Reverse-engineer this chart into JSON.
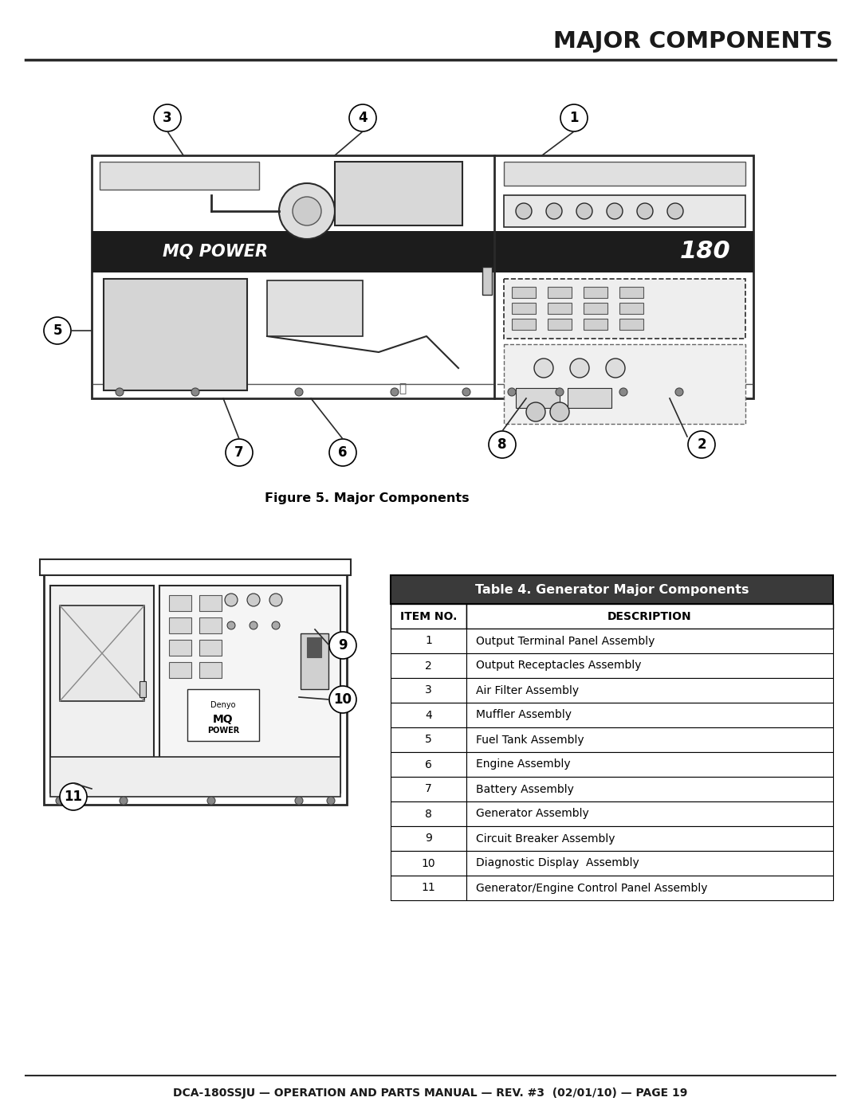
{
  "title": "MAJOR COMPONENTS",
  "figure_caption": "Figure 5. Major Components",
  "footer_text": "DCA-180SSJU — OPERATION AND PARTS MANUAL — REV. #3  (02/01/10) — PAGE 19",
  "table_title": "Table 4. Generator Major Components",
  "table_headers": [
    "ITEM NO.",
    "DESCRIPTION"
  ],
  "table_rows": [
    [
      "1",
      "Output Terminal Panel Assembly"
    ],
    [
      "2",
      "Output Receptacles Assembly"
    ],
    [
      "3",
      "Air Filter Assembly"
    ],
    [
      "4",
      "Muffler Assembly"
    ],
    [
      "5",
      "Fuel Tank Assembly"
    ],
    [
      "6",
      "Engine Assembly"
    ],
    [
      "7",
      "Battery Assembly"
    ],
    [
      "8",
      "Generator Assembly"
    ],
    [
      "9",
      "Circuit Breaker Assembly"
    ],
    [
      "10",
      "Diagnostic Display  Assembly"
    ],
    [
      "11",
      "Generator/Engine Control Panel Assembly"
    ]
  ],
  "bg_color": "#ffffff",
  "table_header_bg": "#3a3a3a",
  "table_header_fg": "#ffffff",
  "table_col_header_bg": "#ffffff",
  "table_row_bg": "#ffffff",
  "border_color": "#000000",
  "title_color": "#1a1a1a",
  "footer_color": "#1a1a1a",
  "line_color": "#2a2a2a"
}
